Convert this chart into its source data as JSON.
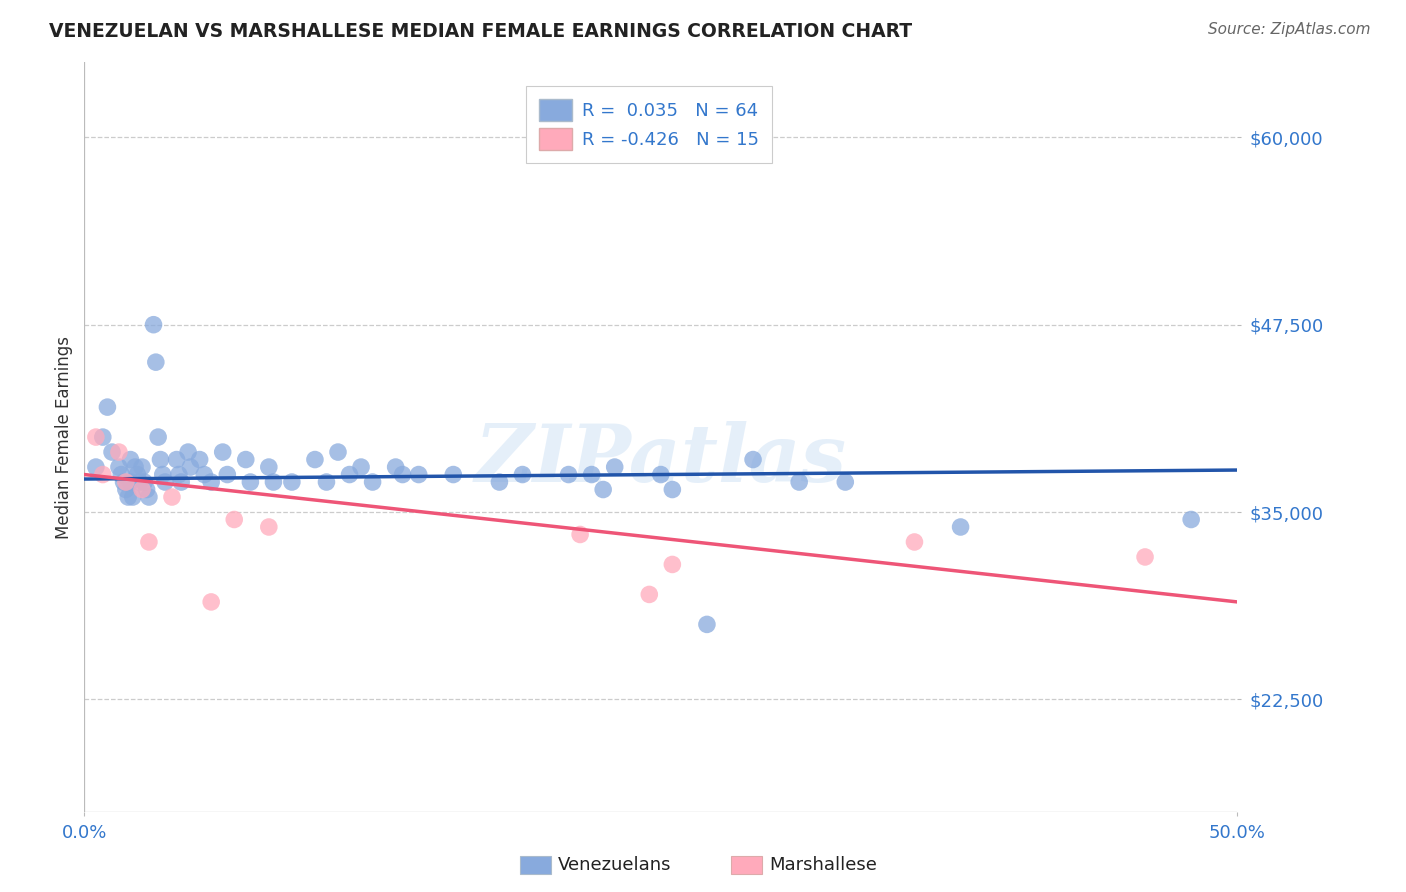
{
  "title": "VENEZUELAN VS MARSHALLESE MEDIAN FEMALE EARNINGS CORRELATION CHART",
  "source": "Source: ZipAtlas.com",
  "ylabel": "Median Female Earnings",
  "yticks": [
    22500,
    35000,
    47500,
    60000
  ],
  "ytick_labels": [
    "$22,500",
    "$35,000",
    "$47,500",
    "$60,000"
  ],
  "xmin": 0.0,
  "xmax": 0.5,
  "ymin": 15000,
  "ymax": 65000,
  "legend_entry1": "R =  0.035   N = 64",
  "legend_entry2": "R = -0.426   N = 15",
  "legend_label1": "Venezuelans",
  "legend_label2": "Marshallese",
  "blue_color": "#88AADD",
  "pink_color": "#FFAABB",
  "blue_line_color": "#2255AA",
  "pink_line_color": "#EE5577",
  "watermark_text": "ZIPatlas",
  "blue_x": [
    0.005,
    0.008,
    0.01,
    0.012,
    0.015,
    0.016,
    0.017,
    0.018,
    0.019,
    0.02,
    0.02,
    0.021,
    0.022,
    0.023,
    0.024,
    0.025,
    0.026,
    0.027,
    0.028,
    0.03,
    0.031,
    0.032,
    0.033,
    0.034,
    0.035,
    0.04,
    0.041,
    0.042,
    0.045,
    0.046,
    0.05,
    0.052,
    0.055,
    0.06,
    0.062,
    0.07,
    0.072,
    0.08,
    0.082,
    0.09,
    0.1,
    0.105,
    0.11,
    0.115,
    0.12,
    0.125,
    0.135,
    0.138,
    0.145,
    0.16,
    0.18,
    0.19,
    0.21,
    0.22,
    0.225,
    0.23,
    0.25,
    0.255,
    0.27,
    0.29,
    0.31,
    0.33,
    0.38,
    0.48
  ],
  "blue_y": [
    38000,
    40000,
    42000,
    39000,
    38000,
    37500,
    37000,
    36500,
    36000,
    38500,
    37000,
    36000,
    38000,
    37500,
    37000,
    38000,
    37000,
    36500,
    36000,
    47500,
    45000,
    40000,
    38500,
    37500,
    37000,
    38500,
    37500,
    37000,
    39000,
    38000,
    38500,
    37500,
    37000,
    39000,
    37500,
    38500,
    37000,
    38000,
    37000,
    37000,
    38500,
    37000,
    39000,
    37500,
    38000,
    37000,
    38000,
    37500,
    37500,
    37500,
    37000,
    37500,
    37500,
    37500,
    36500,
    38000,
    37500,
    36500,
    27500,
    38500,
    37000,
    37000,
    34000,
    34500
  ],
  "pink_x": [
    0.005,
    0.008,
    0.015,
    0.018,
    0.025,
    0.028,
    0.038,
    0.055,
    0.065,
    0.08,
    0.215,
    0.245,
    0.255,
    0.36,
    0.46
  ],
  "pink_y": [
    40000,
    37500,
    39000,
    37000,
    36500,
    33000,
    36000,
    29000,
    34500,
    34000,
    33500,
    29500,
    31500,
    33000,
    32000
  ]
}
